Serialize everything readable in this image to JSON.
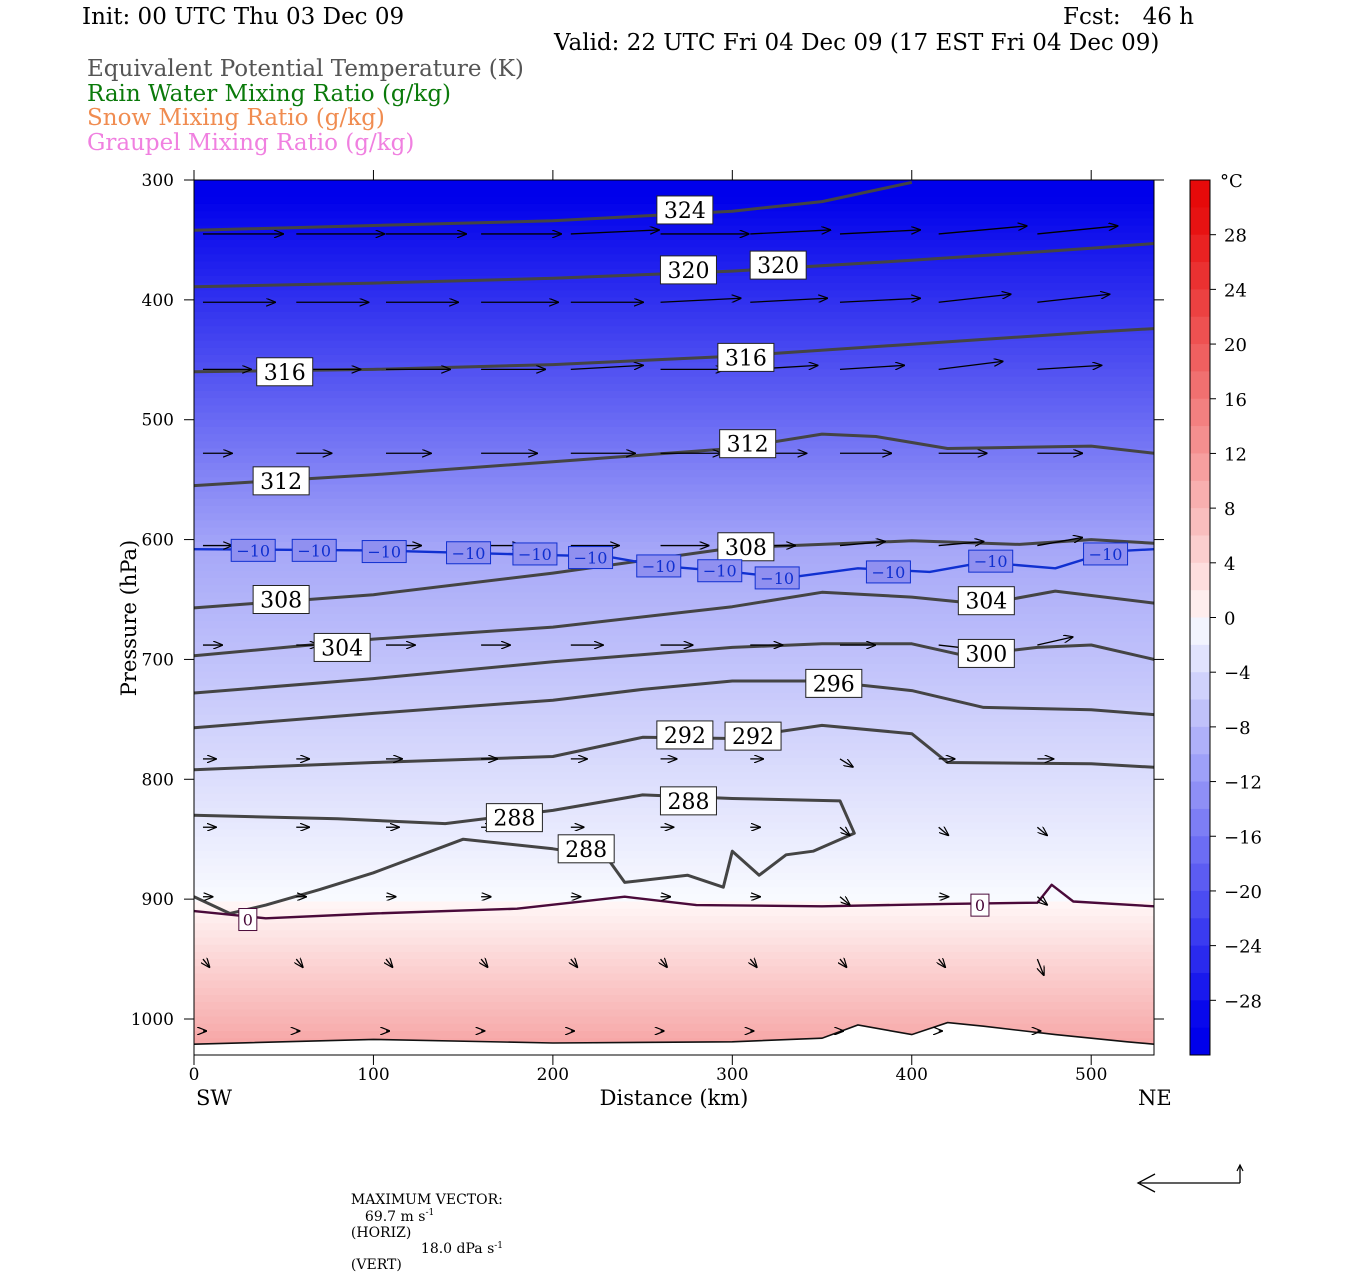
{
  "header": {
    "init": "Init: 00 UTC Thu 03 Dec 09",
    "fcst": "Fcst:   46 h",
    "valid": "Valid: 22 UTC Fri 04 Dec 09 (17 EST Fri 04 Dec 09)",
    "fields": [
      {
        "label": "Equivalent Potential Temperature (K)",
        "color": "#555555"
      },
      {
        "label": "Rain Water Mixing Ratio (g/kg)",
        "color": "#0a7a0a"
      },
      {
        "label": "Snow Mixing Ratio (g/kg)",
        "color": "#f08c50"
      },
      {
        "label": "Graupel Mixing Ratio (g/kg)",
        "color": "#f080e0"
      }
    ]
  },
  "chart_data": {
    "type": "cross-section",
    "xlabel": "Distance (km)",
    "ylabel": "Pressure (hPa)",
    "x_ticks": [
      0,
      100,
      200,
      300,
      400,
      500
    ],
    "xlim": [
      0,
      535
    ],
    "y_ticks": [
      300,
      400,
      500,
      600,
      700,
      800,
      900,
      1000
    ],
    "ylim": [
      300,
      1020
    ],
    "x_end_labels": {
      "left": "SW",
      "right": "NE"
    },
    "colorbar": {
      "unit": "°C",
      "ticks": [
        28,
        24,
        20,
        16,
        12,
        8,
        4,
        0,
        -4,
        -8,
        -12,
        -16,
        -20,
        -24,
        -28
      ],
      "range": [
        -32,
        32
      ]
    },
    "theta_e_contours": [
      {
        "value": 324,
        "points": [
          [
            0,
            342
          ],
          [
            100,
            338
          ],
          [
            200,
            334
          ],
          [
            300,
            326
          ],
          [
            350,
            318
          ],
          [
            400,
            302
          ]
        ]
      },
      {
        "value": 320,
        "points": [
          [
            0,
            389
          ],
          [
            100,
            386
          ],
          [
            200,
            382
          ],
          [
            300,
            376
          ],
          [
            400,
            367
          ],
          [
            500,
            357
          ],
          [
            535,
            353
          ]
        ]
      },
      {
        "value": 316,
        "points": [
          [
            0,
            460
          ],
          [
            100,
            458
          ],
          [
            200,
            454
          ],
          [
            300,
            447
          ],
          [
            400,
            437
          ],
          [
            500,
            427
          ],
          [
            535,
            424
          ]
        ]
      },
      {
        "value": 312,
        "points": [
          [
            0,
            555
          ],
          [
            100,
            546
          ],
          [
            200,
            535
          ],
          [
            300,
            524
          ],
          [
            350,
            512
          ],
          [
            380,
            514
          ],
          [
            420,
            524
          ],
          [
            500,
            522
          ],
          [
            535,
            528
          ]
        ]
      },
      {
        "value": 308,
        "points": [
          [
            0,
            657
          ],
          [
            100,
            646
          ],
          [
            200,
            628
          ],
          [
            300,
            607
          ],
          [
            400,
            601
          ],
          [
            460,
            604
          ],
          [
            500,
            600
          ],
          [
            535,
            603
          ]
        ]
      },
      {
        "value": 304,
        "points": [
          [
            0,
            697
          ],
          [
            100,
            683
          ],
          [
            200,
            673
          ],
          [
            300,
            656
          ],
          [
            350,
            644
          ],
          [
            400,
            648
          ],
          [
            440,
            654
          ],
          [
            480,
            643
          ],
          [
            535,
            653
          ]
        ]
      },
      {
        "value": 300,
        "points": [
          [
            0,
            728
          ],
          [
            100,
            716
          ],
          [
            200,
            702
          ],
          [
            300,
            690
          ],
          [
            350,
            687
          ],
          [
            400,
            687
          ],
          [
            430,
            697
          ],
          [
            470,
            690
          ],
          [
            500,
            688
          ],
          [
            535,
            700
          ]
        ]
      },
      {
        "value": 296,
        "points": [
          [
            0,
            757
          ],
          [
            100,
            745
          ],
          [
            200,
            734
          ],
          [
            250,
            725
          ],
          [
            300,
            718
          ],
          [
            350,
            718
          ],
          [
            400,
            726
          ],
          [
            440,
            740
          ],
          [
            500,
            742
          ],
          [
            535,
            746
          ]
        ]
      },
      {
        "value": 292,
        "points": [
          [
            0,
            792
          ],
          [
            100,
            786
          ],
          [
            200,
            781
          ],
          [
            250,
            765
          ],
          [
            300,
            766
          ],
          [
            350,
            755
          ],
          [
            400,
            762
          ],
          [
            420,
            786
          ],
          [
            500,
            787
          ],
          [
            535,
            790
          ]
        ]
      },
      {
        "value": 288,
        "points": [
          [
            0,
            830
          ],
          [
            80,
            833
          ],
          [
            140,
            837
          ],
          [
            200,
            826
          ],
          [
            250,
            813
          ],
          [
            300,
            816
          ],
          [
            360,
            818
          ],
          [
            368,
            845
          ],
          [
            345,
            860
          ],
          [
            330,
            863
          ],
          [
            315,
            880
          ],
          [
            300,
            860
          ],
          [
            295,
            890
          ],
          [
            275,
            880
          ],
          [
            240,
            886
          ],
          [
            230,
            865
          ],
          [
            200,
            858
          ],
          [
            150,
            850
          ],
          [
            100,
            878
          ],
          [
            70,
            892
          ],
          [
            40,
            905
          ],
          [
            20,
            912
          ],
          [
            0,
            898
          ]
        ]
      }
    ],
    "temperature_contours": [
      {
        "value": -10,
        "color": "#1030d0",
        "points": [
          [
            0,
            608
          ],
          [
            100,
            609
          ],
          [
            200,
            613
          ],
          [
            230,
            614
          ],
          [
            260,
            622
          ],
          [
            300,
            627
          ],
          [
            330,
            632
          ],
          [
            370,
            624
          ],
          [
            410,
            627
          ],
          [
            440,
            619
          ],
          [
            480,
            624
          ],
          [
            510,
            610
          ],
          [
            535,
            608
          ]
        ]
      },
      {
        "value": 0,
        "color": "#4a0a3a",
        "points": [
          [
            0,
            910
          ],
          [
            40,
            916
          ],
          [
            100,
            912
          ],
          [
            180,
            908
          ],
          [
            240,
            898
          ],
          [
            280,
            905
          ],
          [
            350,
            906
          ],
          [
            420,
            904
          ],
          [
            470,
            903
          ],
          [
            478,
            888
          ],
          [
            490,
            902
          ],
          [
            535,
            906
          ]
        ]
      }
    ],
    "surface_line": [
      [
        0,
        1021
      ],
      [
        100,
        1017
      ],
      [
        200,
        1020
      ],
      [
        300,
        1019
      ],
      [
        350,
        1016
      ],
      [
        370,
        1005
      ],
      [
        400,
        1013
      ],
      [
        420,
        1003
      ],
      [
        440,
        1006
      ],
      [
        480,
        1013
      ],
      [
        520,
        1019
      ],
      [
        535,
        1021
      ]
    ],
    "contour_labels": [
      {
        "text": "324",
        "x": 273,
        "p": 325
      },
      {
        "text": "320",
        "x": 275,
        "p": 375
      },
      {
        "text": "320",
        "x": 325,
        "p": 371
      },
      {
        "text": "316",
        "x": 50,
        "p": 460
      },
      {
        "text": "316",
        "x": 307,
        "p": 448
      },
      {
        "text": "312",
        "x": 48,
        "p": 551
      },
      {
        "text": "312",
        "x": 308,
        "p": 520
      },
      {
        "text": "308",
        "x": 48,
        "p": 650
      },
      {
        "text": "308",
        "x": 307,
        "p": 606
      },
      {
        "text": "304",
        "x": 82,
        "p": 690
      },
      {
        "text": "304",
        "x": 441,
        "p": 651
      },
      {
        "text": "300",
        "x": 441,
        "p": 695
      },
      {
        "text": "296",
        "x": 356,
        "p": 720
      },
      {
        "text": "292",
        "x": 273,
        "p": 763
      },
      {
        "text": "292",
        "x": 311,
        "p": 764
      },
      {
        "text": "288",
        "x": 178,
        "p": 832
      },
      {
        "text": "288",
        "x": 275,
        "p": 818
      },
      {
        "text": "288",
        "x": 218,
        "p": 858
      }
    ],
    "temp_labels": [
      {
        "text": "−10",
        "x": 33,
        "p": 609
      },
      {
        "text": "−10",
        "x": 67,
        "p": 609
      },
      {
        "text": "−10",
        "x": 106,
        "p": 610
      },
      {
        "text": "−10",
        "x": 153,
        "p": 611
      },
      {
        "text": "−10",
        "x": 190,
        "p": 612
      },
      {
        "text": "−10",
        "x": 221,
        "p": 615
      },
      {
        "text": "−10",
        "x": 259,
        "p": 622
      },
      {
        "text": "−10",
        "x": 293,
        "p": 626
      },
      {
        "text": "−10",
        "x": 325,
        "p": 632
      },
      {
        "text": "−10",
        "x": 387,
        "p": 627
      },
      {
        "text": "−10",
        "x": 444,
        "p": 618
      },
      {
        "text": "−10",
        "x": 508,
        "p": 612
      },
      {
        "text": "0",
        "x": 30,
        "p": 917
      },
      {
        "text": "0",
        "x": 438,
        "p": 905
      }
    ],
    "wind_rows": [
      {
        "p": 345,
        "u": [
          50,
          55,
          50,
          50,
          55,
          55,
          50,
          50,
          55,
          50
        ],
        "w": [
          0,
          0,
          0,
          0,
          -1,
          0,
          -1,
          -1,
          -2,
          -2
        ]
      },
      {
        "p": 402,
        "u": [
          45,
          45,
          45,
          48,
          45,
          50,
          48,
          50,
          45,
          45
        ],
        "w": [
          0,
          0,
          0,
          0,
          0,
          -1,
          -1,
          -1,
          -2,
          -2
        ]
      },
      {
        "p": 458,
        "u": [
          30,
          40,
          40,
          40,
          45,
          40,
          42,
          40,
          40,
          40
        ],
        "w": [
          0,
          0,
          0,
          0,
          -1,
          0,
          -1,
          -1,
          -2,
          -1
        ]
      },
      {
        "p": 528,
        "u": [
          18,
          22,
          28,
          35,
          40,
          38,
          35,
          32,
          30,
          28
        ],
        "w": [
          0,
          0,
          0,
          0,
          0,
          0,
          0,
          0,
          0,
          0
        ]
      },
      {
        "p": 605,
        "u": [
          18,
          20,
          22,
          25,
          30,
          30,
          28,
          28,
          28,
          28
        ],
        "w": [
          0,
          0,
          0,
          0,
          0,
          0,
          0,
          -1,
          -1,
          -2
        ]
      },
      {
        "p": 688,
        "u": [
          12,
          14,
          18,
          18,
          20,
          20,
          20,
          22,
          22,
          22
        ],
        "w": [
          0,
          0,
          0,
          0,
          0,
          0,
          0,
          0,
          1,
          -2
        ]
      },
      {
        "p": 783,
        "u": [
          8,
          8,
          10,
          10,
          10,
          10,
          8,
          8,
          10,
          10
        ],
        "w": [
          0,
          0,
          0,
          0,
          0,
          0,
          0,
          2,
          0,
          0
        ]
      },
      {
        "p": 840,
        "u": [
          8,
          8,
          8,
          8,
          8,
          8,
          6,
          6,
          6,
          6
        ],
        "w": [
          0,
          0,
          0,
          0,
          0,
          0,
          0,
          2,
          2,
          2
        ]
      },
      {
        "p": 898,
        "u": [
          6,
          6,
          6,
          6,
          6,
          6,
          6,
          6,
          6,
          6
        ],
        "w": [
          0,
          0,
          0,
          0,
          0,
          0,
          0,
          2,
          0,
          2
        ]
      },
      {
        "p": 950,
        "u": [
          4,
          4,
          4,
          4,
          4,
          4,
          4,
          4,
          4,
          4
        ],
        "w": [
          2,
          2,
          2,
          2,
          2,
          2,
          2,
          2,
          2,
          4
        ]
      },
      {
        "p": 1010,
        "u": [
          2,
          2,
          2,
          2,
          2,
          2,
          2,
          2,
          2,
          2
        ],
        "w": [
          0,
          0,
          0,
          0,
          0,
          0,
          0,
          0,
          0,
          0
        ]
      }
    ]
  },
  "footer": {
    "max_vector_label": "MAXIMUM VECTOR:",
    "horiz_value": "69.7 m s",
    "horiz_unit_exp": "-1",
    "horiz_tag": "(HORIZ)",
    "vert_value": "18.0 dPa s",
    "vert_unit_exp": "-1",
    "vert_tag": "(VERT)"
  }
}
